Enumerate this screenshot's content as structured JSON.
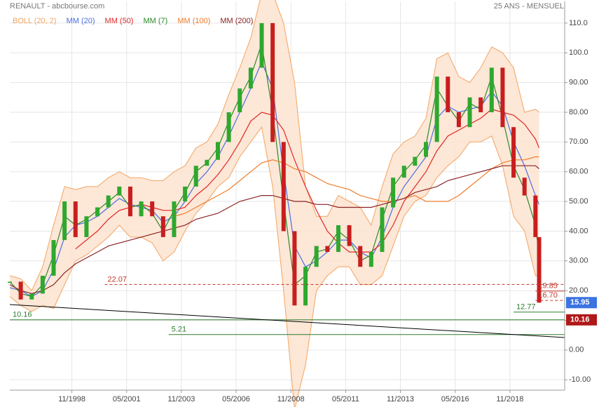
{
  "chart_data": {
    "type": "stock",
    "title": "RENAULT - abcbourse.com",
    "subtitle": "25 ANS - MENSUEL",
    "xlim": [
      "01/1996",
      "05/2021"
    ],
    "ylim": [
      -13.5,
      117.3
    ],
    "xticks": [
      "11/1998",
      "05/2001",
      "11/2003",
      "05/2006",
      "11/2008",
      "05/2011",
      "11/2013",
      "05/2016",
      "11/2018"
    ],
    "yticks": [
      {
        "value": 110,
        "label": "110.0"
      },
      {
        "value": 100,
        "label": "100.0"
      },
      {
        "value": 90,
        "label": "90.00"
      },
      {
        "value": 80,
        "label": "80.00"
      },
      {
        "value": 70,
        "label": "70.00"
      },
      {
        "value": 60,
        "label": "60.00"
      },
      {
        "value": 50,
        "label": "50.00"
      },
      {
        "value": 40,
        "label": "40.00"
      },
      {
        "value": 30,
        "label": "30.00"
      },
      {
        "value": 20,
        "label": "20.00"
      },
      {
        "value": 10,
        "label": "10.00"
      },
      {
        "value": 0,
        "label": "0.00"
      },
      {
        "value": -10,
        "label": "-10.00"
      }
    ],
    "grid": true,
    "x": [
      "01/1996",
      "07/1996",
      "01/1997",
      "07/1997",
      "01/1998",
      "07/1998",
      "01/1999",
      "07/1999",
      "01/2000",
      "07/2000",
      "01/2001",
      "07/2001",
      "01/2002",
      "07/2002",
      "01/2003",
      "07/2003",
      "01/2004",
      "07/2004",
      "01/2005",
      "07/2005",
      "01/2006",
      "07/2006",
      "01/2007",
      "07/2007",
      "01/2008",
      "07/2008",
      "01/2009",
      "07/2009",
      "01/2010",
      "07/2010",
      "01/2011",
      "07/2011",
      "01/2012",
      "07/2012",
      "01/2013",
      "07/2013",
      "01/2014",
      "07/2014",
      "01/2015",
      "07/2015",
      "01/2016",
      "07/2016",
      "01/2017",
      "07/2017",
      "01/2018",
      "07/2018",
      "01/2019",
      "07/2019",
      "01/2020",
      "03/2020"
    ],
    "close": {
      "up_color": "#2ea82e",
      "down_color": "#c81e1e",
      "tag_color": "#3b73e0",
      "values": [
        23,
        17,
        19,
        25,
        37,
        50,
        38,
        45,
        48,
        52,
        55,
        45,
        50,
        45,
        38,
        50,
        55,
        62,
        64,
        70,
        80,
        88,
        95,
        110,
        70,
        40,
        15,
        28,
        35,
        33,
        42,
        35,
        28,
        33,
        48,
        58,
        62,
        65,
        70,
        92,
        80,
        75,
        85,
        80,
        95,
        75,
        58,
        52,
        38,
        15.95
      ]
    },
    "series": [
      {
        "name": "BOLL (20, 2)",
        "color": "#f4a460",
        "fill": "#fde3d0",
        "upper": [
          25,
          24,
          20,
          28,
          42,
          55,
          54,
          55,
          55,
          58,
          60,
          58,
          58,
          57,
          57,
          60,
          62,
          68,
          70,
          76,
          86,
          95,
          105,
          120,
          120,
          110,
          90,
          55,
          45,
          45,
          52,
          50,
          48,
          42,
          55,
          66,
          70,
          72,
          78,
          98,
          100,
          92,
          90,
          95,
          102,
          100,
          95,
          80,
          81,
          80
        ],
        "lower": [
          18,
          15,
          13,
          15,
          14,
          22,
          30,
          32,
          35,
          38,
          42,
          38,
          38,
          36,
          30,
          33,
          40,
          46,
          50,
          55,
          58,
          65,
          70,
          75,
          55,
          20,
          -20,
          -5,
          20,
          25,
          28,
          28,
          22,
          22,
          25,
          35,
          45,
          50,
          52,
          58,
          62,
          65,
          70,
          70,
          72,
          62,
          45,
          40,
          25,
          25
        ]
      },
      {
        "name": "MM (20)",
        "color": "#4a6fe0",
        "values": [
          21,
          20,
          18,
          20,
          27,
          38,
          42,
          43,
          45,
          48,
          51,
          49,
          48,
          47,
          43,
          45,
          50,
          56,
          60,
          65,
          72,
          80,
          88,
          97,
          88,
          60,
          35,
          28,
          30,
          33,
          37,
          37,
          33,
          31,
          38,
          48,
          55,
          60,
          65,
          78,
          82,
          80,
          81,
          82,
          87,
          82,
          70,
          62,
          52,
          49
        ]
      },
      {
        "name": "MM (50)",
        "color": "#e02828",
        "values": [
          null,
          null,
          null,
          null,
          null,
          null,
          34,
          37,
          40,
          44,
          47,
          48,
          49,
          48,
          47,
          47,
          48,
          52,
          55,
          59,
          64,
          70,
          77,
          80,
          79,
          74,
          64,
          55,
          47,
          40,
          36,
          33,
          33,
          33,
          36,
          42,
          50,
          55,
          60,
          67,
          72,
          74,
          76,
          78,
          81,
          80,
          79,
          76,
          71,
          68
        ]
      },
      {
        "name": "MM (7)",
        "color": "#2a8a2a",
        "values": [
          23,
          19,
          18,
          22,
          32,
          45,
          42,
          44,
          47,
          50,
          53,
          48,
          49,
          46,
          40,
          47,
          53,
          60,
          63,
          68,
          77,
          85,
          92,
          103,
          80,
          50,
          22,
          25,
          33,
          34,
          40,
          37,
          30,
          32,
          44,
          55,
          60,
          64,
          69,
          88,
          82,
          77,
          83,
          81,
          92,
          78,
          62,
          54,
          42,
          32
        ]
      },
      {
        "name": "MM (100)",
        "color": "#f07c2a",
        "values": [
          null,
          null,
          null,
          null,
          null,
          null,
          null,
          null,
          null,
          null,
          null,
          null,
          null,
          null,
          null,
          45,
          46,
          48,
          50,
          52,
          54,
          57,
          60,
          63,
          64,
          63,
          61,
          60,
          58,
          56,
          55,
          54,
          52,
          51,
          50,
          50,
          51,
          52,
          50,
          50,
          50,
          52,
          55,
          58,
          61,
          63,
          64,
          64,
          65,
          65
        ]
      },
      {
        "name": "MM (200)",
        "color": "#8b2323",
        "values": [
          22,
          20,
          19,
          20,
          22,
          26,
          29,
          31,
          33,
          35,
          36,
          37,
          38,
          39,
          40,
          41,
          42,
          44,
          45,
          46,
          48,
          50,
          51,
          52,
          52,
          51,
          50,
          50,
          49,
          49,
          48,
          48,
          48,
          48,
          49,
          50,
          51,
          53,
          54,
          55,
          57,
          58,
          59,
          60,
          61,
          62,
          62,
          62,
          62,
          61
        ]
      }
    ],
    "hlines": [
      {
        "value": 22.07,
        "color": "#c0392b",
        "dashed": true,
        "start": "05/2000"
      },
      {
        "value": 19.85,
        "color": "#c0392b",
        "dashed": false,
        "start": "01/2020"
      },
      {
        "value": 16.7,
        "label": "16.70",
        "color": "#c0392b",
        "dashed": true,
        "start": "01/2020"
      },
      {
        "value": 12.77,
        "color": "#2e7d2e",
        "dashed": false,
        "start": "01/2019"
      },
      {
        "value": 10.16,
        "color": "#2e7d2e",
        "dashed": false,
        "start": "01/1996",
        "tag_color": "#b01818"
      },
      {
        "value": 5.21,
        "color": "#2e7d2e",
        "dashed": false,
        "start": "04/2003"
      }
    ],
    "trendline": {
      "color": "#000000",
      "from": [
        "01/1996",
        15.3
      ],
      "to": [
        "05/2021",
        4.2
      ]
    }
  }
}
